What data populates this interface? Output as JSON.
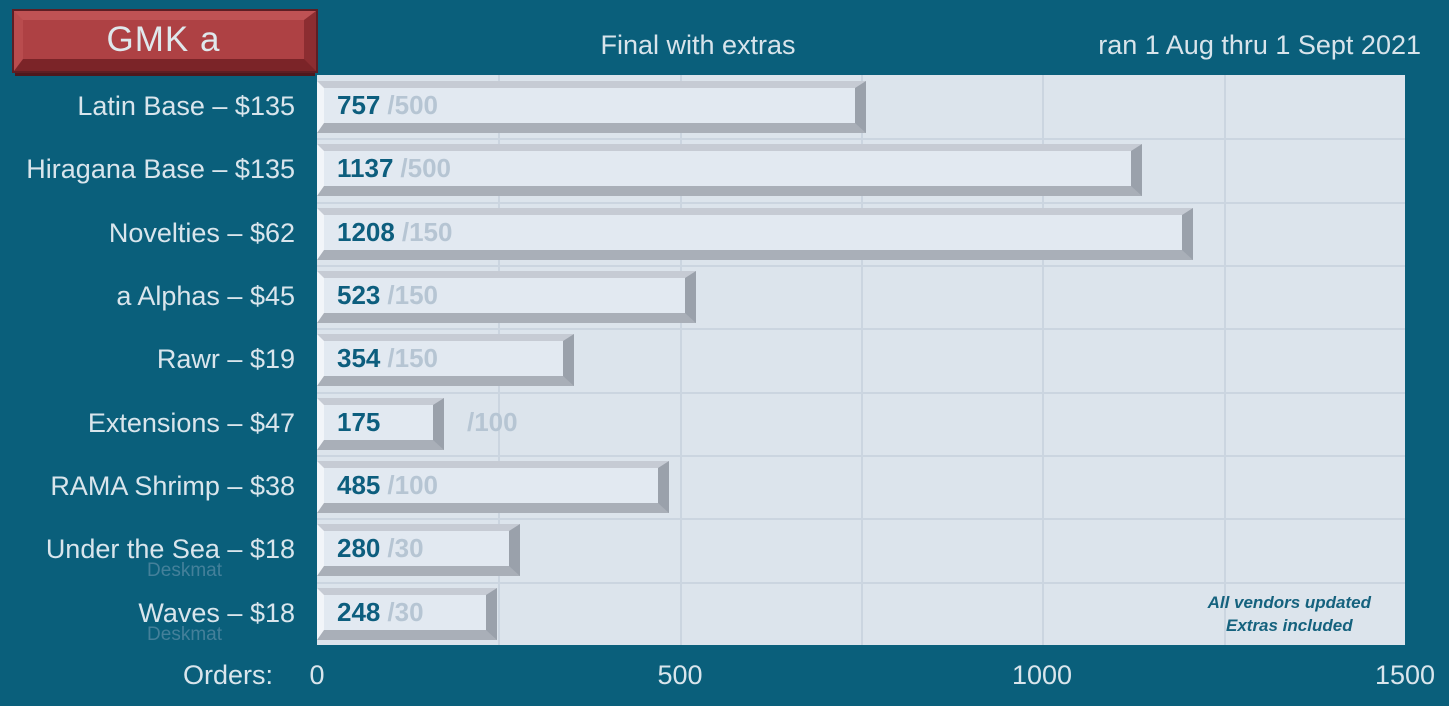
{
  "header": {
    "badge_label": "GMK a",
    "title": "Final with extras",
    "date_range": "ran 1 Aug thru 1 Sept 2021"
  },
  "chart_data": {
    "type": "bar",
    "orientation": "horizontal",
    "title": "Final with extras",
    "xlabel": "Orders:",
    "xlim": [
      0,
      1500
    ],
    "x_ticks": [
      "0",
      "500",
      "1000",
      "1500"
    ],
    "gridline_interval": 250,
    "grid": true,
    "categories": [
      "Latin Base – $135",
      "Hiragana Base – $135",
      "Novelties – $62",
      "a Alphas – $45",
      "Rawr – $19",
      "Extensions – $47",
      "RAMA Shrimp – $38",
      "Under the Sea – $18",
      "Waves – $18"
    ],
    "rows": [
      {
        "label": "Latin Base – $135",
        "sublabel": "",
        "value": 757,
        "quota_label": "/500"
      },
      {
        "label": "Hiragana Base – $135",
        "sublabel": "",
        "value": 1137,
        "quota_label": "/500"
      },
      {
        "label": "Novelties – $62",
        "sublabel": "",
        "value": 1208,
        "quota_label": "/150"
      },
      {
        "label": "a Alphas – $45",
        "sublabel": "",
        "value": 523,
        "quota_label": "/150"
      },
      {
        "label": "Rawr – $19",
        "sublabel": "",
        "value": 354,
        "quota_label": "/150"
      },
      {
        "label": "Extensions – $47",
        "sublabel": "",
        "value": 175,
        "quota_label": "/100"
      },
      {
        "label": "RAMA Shrimp – $38",
        "sublabel": "",
        "value": 485,
        "quota_label": "/100"
      },
      {
        "label": "Under the Sea – $18",
        "sublabel": "Deskmat",
        "value": 280,
        "quota_label": "/30"
      },
      {
        "label": "Waves – $18",
        "sublabel": "Deskmat",
        "value": 248,
        "quota_label": "/30"
      }
    ],
    "footnote_lines": [
      "All vendors updated",
      "Extras included"
    ]
  },
  "colors": {
    "background": "#0A5F7B",
    "plot_background": "#DCE4EC",
    "bar_face": "#E2E9F1",
    "bar_bevel_dark": "#9AA1AB",
    "badge_red": "#AE4144",
    "value_text": "#0D5E7E",
    "quota_text": "#B6C5D3",
    "label_text": "#D9E5EC",
    "sublabel_text": "#44809A",
    "footnote_text": "#15627E",
    "gridline": "#CBD5E0"
  }
}
